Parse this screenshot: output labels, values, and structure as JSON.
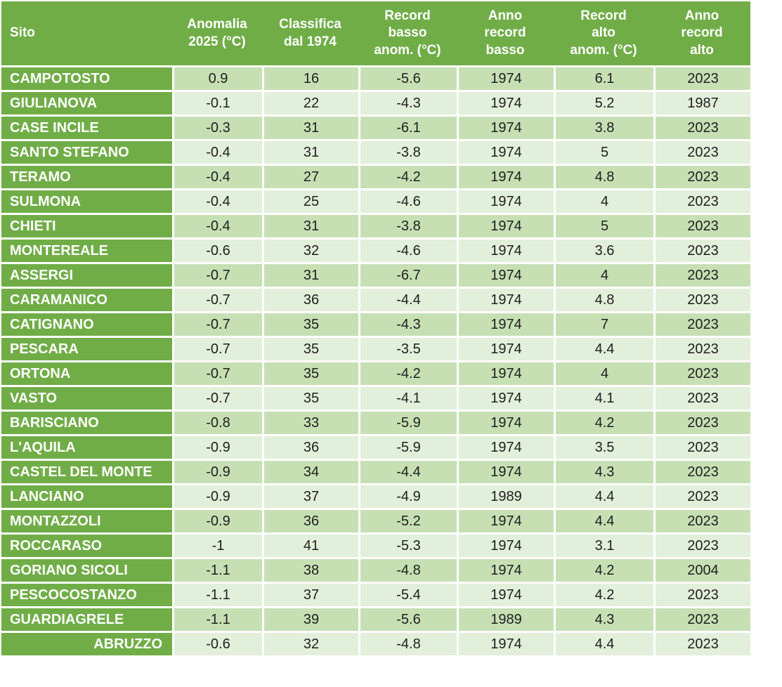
{
  "colors": {
    "header_green": "#70AD47",
    "band_dark": "#C6E0B4",
    "band_light": "#E2EFDA",
    "header_text": "#FFFFFF",
    "body_text": "#1F1F1F",
    "border": "#FFFFFF",
    "background": "#FFFFFF"
  },
  "chart_data": {
    "type": "table",
    "title": "",
    "layout": {
      "header_position": "top",
      "banded_rows": true,
      "row_header_column": "Sito",
      "last_row_is_region_summary": true
    },
    "columns": [
      {
        "id": "sito",
        "label": "Sito"
      },
      {
        "id": "anomalia_2025",
        "label": "Anomalia\n2025 (°C)"
      },
      {
        "id": "classifica",
        "label": "Classifica\ndal 1974"
      },
      {
        "id": "record_basso",
        "label": "Record\nbasso\nanom. (°C)"
      },
      {
        "id": "anno_record_basso",
        "label": "Anno\nrecord\nbasso"
      },
      {
        "id": "record_alto",
        "label": "Record\nalto\nanom. (°C)"
      },
      {
        "id": "anno_record_alto",
        "label": "Anno\nrecord\nalto"
      }
    ],
    "rows": [
      {
        "sito": "CAMPOTOSTO",
        "values": [
          0.9,
          16,
          -5.6,
          1974,
          6.1,
          2023
        ]
      },
      {
        "sito": "GIULIANOVA",
        "values": [
          -0.1,
          22,
          -4.3,
          1974,
          5.2,
          1987
        ]
      },
      {
        "sito": "CASE INCILE",
        "values": [
          -0.3,
          31,
          -6.1,
          1974,
          3.8,
          2023
        ]
      },
      {
        "sito": "SANTO STEFANO",
        "values": [
          -0.4,
          31,
          -3.8,
          1974,
          5,
          2023
        ]
      },
      {
        "sito": "TERAMO",
        "values": [
          -0.4,
          27,
          -4.2,
          1974,
          4.8,
          2023
        ]
      },
      {
        "sito": "SULMONA",
        "values": [
          -0.4,
          25,
          -4.6,
          1974,
          4,
          2023
        ]
      },
      {
        "sito": "CHIETI",
        "values": [
          -0.4,
          31,
          -3.8,
          1974,
          5,
          2023
        ]
      },
      {
        "sito": "MONTEREALE",
        "values": [
          -0.6,
          32,
          -4.6,
          1974,
          3.6,
          2023
        ]
      },
      {
        "sito": "ASSERGI",
        "values": [
          -0.7,
          31,
          -6.7,
          1974,
          4,
          2023
        ]
      },
      {
        "sito": "CARAMANICO",
        "values": [
          -0.7,
          36,
          -4.4,
          1974,
          4.8,
          2023
        ]
      },
      {
        "sito": "CATIGNANO",
        "values": [
          -0.7,
          35,
          -4.3,
          1974,
          7,
          2023
        ]
      },
      {
        "sito": "PESCARA",
        "values": [
          -0.7,
          35,
          -3.5,
          1974,
          4.4,
          2023
        ]
      },
      {
        "sito": "ORTONA",
        "values": [
          -0.7,
          35,
          -4.2,
          1974,
          4,
          2023
        ]
      },
      {
        "sito": "VASTO",
        "values": [
          -0.7,
          35,
          -4.1,
          1974,
          4.1,
          2023
        ]
      },
      {
        "sito": "BARISCIANO",
        "values": [
          -0.8,
          33,
          -5.9,
          1974,
          4.2,
          2023
        ]
      },
      {
        "sito": "L'AQUILA",
        "values": [
          -0.9,
          36,
          -5.9,
          1974,
          3.5,
          2023
        ]
      },
      {
        "sito": "CASTEL DEL MONTE",
        "values": [
          -0.9,
          34,
          -4.4,
          1974,
          4.3,
          2023
        ]
      },
      {
        "sito": "LANCIANO",
        "values": [
          -0.9,
          37,
          -4.9,
          1989,
          4.4,
          2023
        ]
      },
      {
        "sito": "MONTAZZOLI",
        "values": [
          -0.9,
          36,
          -5.2,
          1974,
          4.4,
          2023
        ]
      },
      {
        "sito": "ROCCARASO",
        "values": [
          -1,
          41,
          -5.3,
          1974,
          3.1,
          2023
        ]
      },
      {
        "sito": "GORIANO SICOLI",
        "values": [
          -1.1,
          38,
          -4.8,
          1974,
          4.2,
          2004
        ]
      },
      {
        "sito": "PESCOCOSTANZO",
        "values": [
          -1.1,
          37,
          -5.4,
          1974,
          4.2,
          2023
        ]
      },
      {
        "sito": "GUARDIAGRELE",
        "values": [
          -1.1,
          39,
          -5.6,
          1989,
          4.3,
          2023
        ]
      },
      {
        "sito": "ABRUZZO",
        "values": [
          -0.6,
          32,
          -4.8,
          1974,
          4.4,
          2023
        ],
        "summary": true
      }
    ]
  }
}
